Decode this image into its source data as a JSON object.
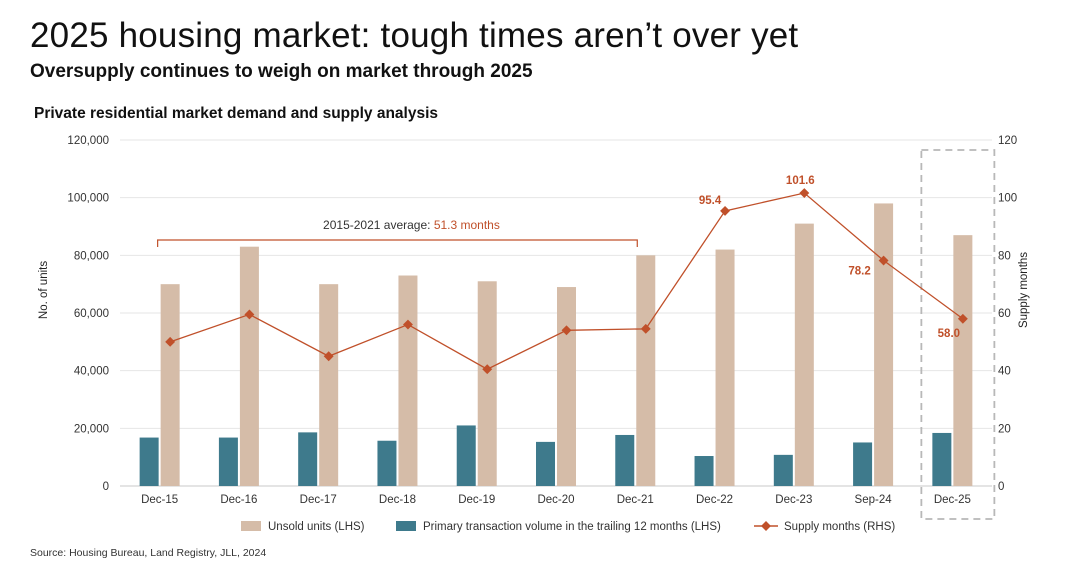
{
  "title": "2025 housing market: tough times aren’t over yet",
  "subtitle": "Oversupply continues to weigh on market through 2025",
  "source": "Source: Housing Bureau, Land Registry, JLL, 2024",
  "colors": {
    "unsold": "#D5BCA8",
    "transaction": "#3E7A8C",
    "supply": "#C0502A",
    "grid": "#e6e6e6",
    "dashed_box": "#b8b8b8"
  },
  "chart_data": {
    "type": "bar",
    "title": "Private residential market demand and supply analysis",
    "categories": [
      "Dec-15",
      "Dec-16",
      "Dec-17",
      "Dec-18",
      "Dec-19",
      "Dec-20",
      "Dec-21",
      "Dec-22",
      "Dec-23",
      "Sep-24",
      "Dec-25"
    ],
    "series": [
      {
        "name": "Unsold units (LHS)",
        "kind": "bar",
        "axis": "left",
        "values": [
          70000,
          83000,
          70000,
          73000,
          71000,
          69000,
          80000,
          82000,
          91000,
          98000,
          87000
        ]
      },
      {
        "name": "Primary transaction volume in the trailing 12 months (LHS)",
        "kind": "bar",
        "axis": "left",
        "values": [
          16800,
          16800,
          18600,
          15700,
          21000,
          15300,
          17700,
          10400,
          10800,
          15100,
          18400
        ]
      },
      {
        "name": "Supply months (RHS)",
        "kind": "line",
        "marker": "diamond",
        "axis": "right",
        "values": [
          50,
          59.5,
          45,
          56,
          40.5,
          54,
          54.5,
          95.4,
          101.6,
          78.2,
          58.0
        ]
      }
    ],
    "data_labels": [
      {
        "index": 7,
        "text": "95.4"
      },
      {
        "index": 8,
        "text": "101.6"
      },
      {
        "index": 9,
        "text": "78.2"
      },
      {
        "index": 10,
        "text": "58.0"
      }
    ],
    "ylabel": "No. of units",
    "y2label": "Supply months",
    "ylim": [
      0,
      120000
    ],
    "y2lim": [
      0,
      120
    ],
    "yticks": [
      "0",
      "20,000",
      "40,000",
      "60,000",
      "80,000",
      "100,000",
      "120,000"
    ],
    "y2ticks": [
      "0",
      "20",
      "40",
      "60",
      "80",
      "100",
      "120"
    ],
    "annotation": {
      "prefix": "2015-2021 average: ",
      "value": "51.3 months",
      "from_category": "Dec-15",
      "to_category": "Dec-21"
    },
    "highlight_category": "Dec-25",
    "grid": true,
    "legend": "bottom"
  }
}
